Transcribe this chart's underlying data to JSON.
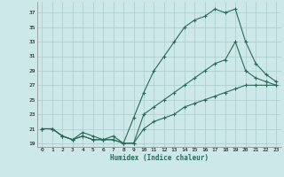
{
  "title": "",
  "xlabel": "Humidex (Indice chaleur)",
  "ylabel": "",
  "bg_color": "#cce8e8",
  "grid_color": "#aacccc",
  "line_color": "#2a6a5a",
  "xlim": [
    -0.5,
    23.5
  ],
  "ylim": [
    18.5,
    38.5
  ],
  "xticks": [
    0,
    1,
    2,
    3,
    4,
    5,
    6,
    7,
    8,
    9,
    10,
    11,
    12,
    13,
    14,
    15,
    16,
    17,
    18,
    19,
    20,
    21,
    22,
    23
  ],
  "yticks": [
    19,
    21,
    23,
    25,
    27,
    29,
    31,
    33,
    35,
    37
  ],
  "series1_x": [
    0,
    1,
    2,
    3,
    4,
    5,
    6,
    7,
    8,
    9,
    10,
    11,
    12,
    13,
    14,
    15,
    16,
    17,
    18,
    19,
    20,
    21,
    22,
    23
  ],
  "series1_y": [
    21,
    21,
    20,
    19.5,
    20,
    19.5,
    19.5,
    19.5,
    19,
    22.5,
    26,
    29,
    31,
    33,
    35,
    36,
    36.5,
    37.5,
    37,
    37.5,
    33,
    30,
    28.5,
    27.5
  ],
  "series2_x": [
    0,
    1,
    2,
    3,
    4,
    5,
    6,
    7,
    8,
    9,
    10,
    11,
    12,
    13,
    14,
    15,
    16,
    17,
    18,
    19,
    20,
    21,
    22,
    23
  ],
  "series2_y": [
    21,
    21,
    20,
    19.5,
    20,
    19.5,
    19.5,
    19.5,
    19,
    19,
    23,
    24,
    25,
    26,
    27,
    28,
    29,
    30,
    30.5,
    33,
    29,
    28,
    27.5,
    27
  ],
  "series3_x": [
    0,
    1,
    2,
    3,
    4,
    5,
    6,
    7,
    8,
    9,
    10,
    11,
    12,
    13,
    14,
    15,
    16,
    17,
    18,
    19,
    20,
    21,
    22,
    23
  ],
  "series3_y": [
    21,
    21,
    20,
    19.5,
    20.5,
    20,
    19.5,
    20,
    19,
    19,
    21,
    22,
    22.5,
    23,
    24,
    24.5,
    25,
    25.5,
    26,
    26.5,
    27,
    27,
    27,
    27
  ]
}
